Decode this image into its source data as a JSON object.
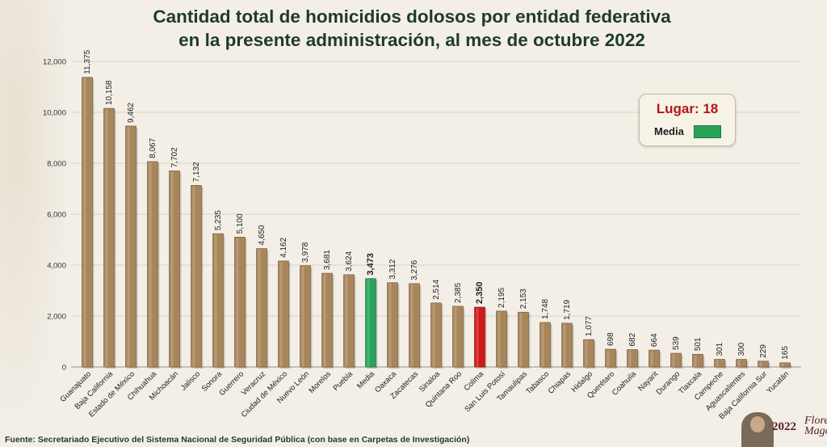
{
  "header": {
    "title_line1": "Cantidad total de homicidios dolosos por entidad federativa",
    "title_line2": "en la presente administración, al mes de octubre 2022"
  },
  "legend": {
    "lugar": "Lugar: 18",
    "media_label": "Media",
    "media_color": "#27a35a"
  },
  "footer": {
    "source": "Fuente: Secretariado Ejecutivo del Sistema Nacional de Seguridad Pública (con base en Carpetas de Investigación)"
  },
  "logo": {
    "year": "2022",
    "name": "Flores Magón"
  },
  "colors": {
    "bar": "#a8865a",
    "media": "#27a35a",
    "highlight": "#d0191a",
    "grid": "#d9d2c4",
    "title": "#1f3a2c"
  },
  "chart_data": {
    "type": "bar",
    "title": "Cantidad total de homicidios dolosos por entidad federativa en la presente administración, al mes de octubre 2022",
    "xlabel": "",
    "ylabel": "",
    "ylim": [
      0,
      12000
    ],
    "yticks": [
      "0",
      "2,000",
      "4,000",
      "6,000",
      "8,000",
      "10,000",
      "12,000"
    ],
    "grid": true,
    "categories": [
      "Guanajuato",
      "Baja California",
      "Estado de México",
      "Chihuahua",
      "Michoacán",
      "Jalisco",
      "Sonora",
      "Guerrero",
      "Veracruz",
      "Ciudad de México",
      "Nuevo León",
      "Morelos",
      "Puebla",
      "Media",
      "Oaxaca",
      "Zacatecas",
      "Sinaloa",
      "Quintana Roo",
      "Colima",
      "San Luis Potosí",
      "Tamaulipas",
      "Tabasco",
      "Chiapas",
      "Hidalgo",
      "Querétaro",
      "Coahuila",
      "Nayarit",
      "Durango",
      "Tlaxcala",
      "Campeche",
      "Aguascalientes",
      "Baja California Sur",
      "Yucatán"
    ],
    "values": [
      11375,
      10158,
      9462,
      8067,
      7702,
      7132,
      5235,
      5100,
      4650,
      4162,
      3978,
      3681,
      3624,
      3473,
      3312,
      3276,
      2514,
      2385,
      2350,
      2195,
      2153,
      1748,
      1719,
      1077,
      698,
      682,
      664,
      539,
      501,
      301,
      300,
      229,
      165
    ],
    "labels": [
      "11,375",
      "10,158",
      "9,462",
      "8,067",
      "7,702",
      "7,132",
      "5,235",
      "5,100",
      "4,650",
      "4,162",
      "3,978",
      "3,681",
      "3,624",
      "3,473",
      "3,312",
      "3,276",
      "2,514",
      "2,385",
      "2,350",
      "2,195",
      "2,153",
      "1,748",
      "1,719",
      "1,077",
      "698",
      "682",
      "664",
      "539",
      "501",
      "301",
      "300",
      "229",
      "165"
    ],
    "media_category": "Media",
    "highlight_category": "Colima"
  }
}
